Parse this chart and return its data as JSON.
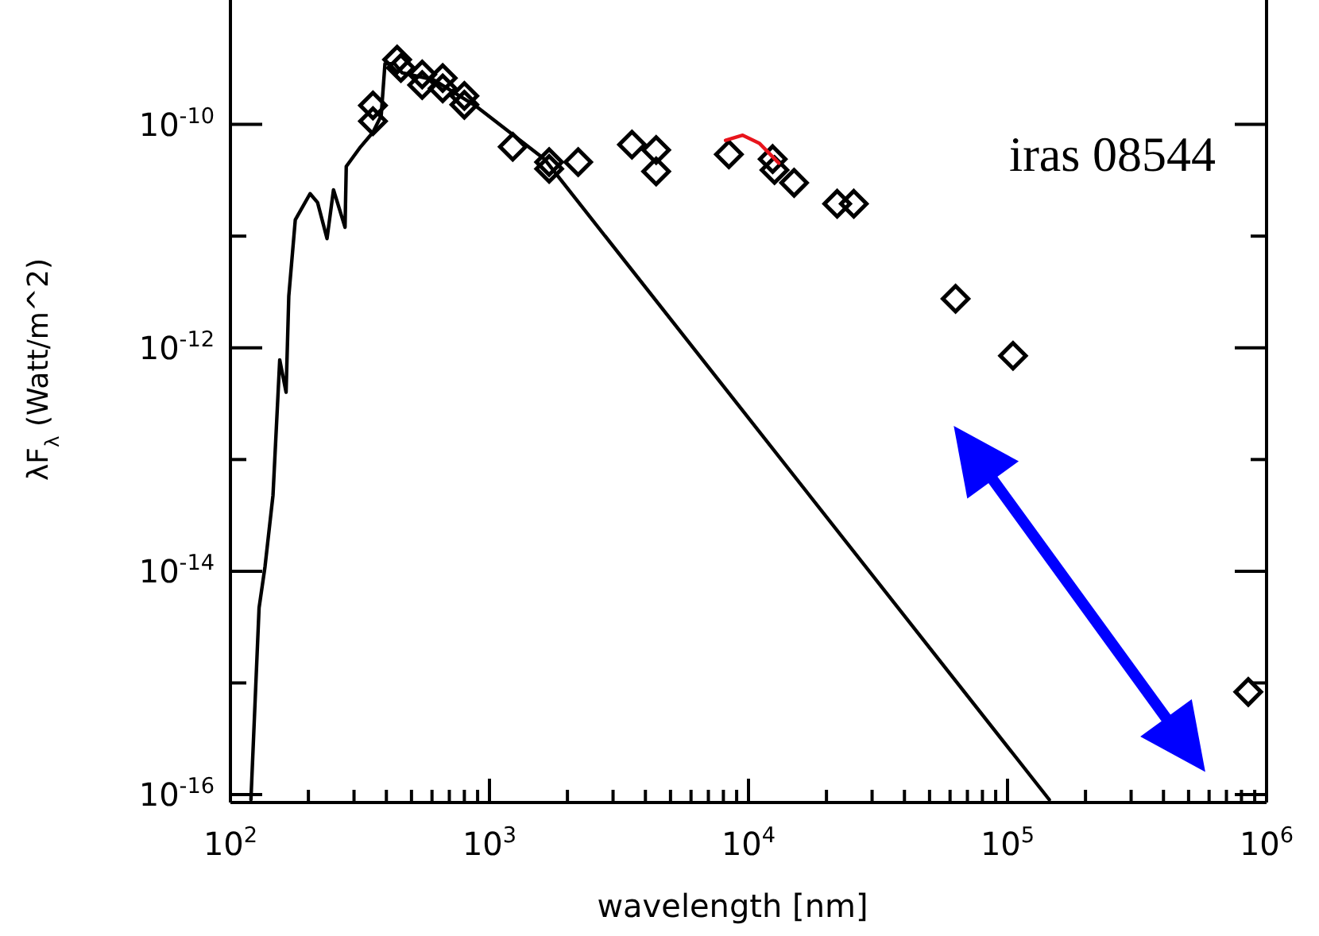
{
  "chart_data": {
    "type": "scatter",
    "xlabel": "wavelength [nm]",
    "ylabel": "λF$_{λ}$  (Watt/m^2)",
    "annotations": [
      "iras 08544"
    ],
    "log": "xy",
    "grid": false,
    "xlim": [
      100,
      1000000
    ],
    "ylim": [
      8.5e-17,
      1.3e-09
    ],
    "xticks": [
      {
        "value": 100,
        "label": "10$^{2}$"
      },
      {
        "value": 200,
        "label": null
      },
      {
        "value": 300,
        "label": null
      },
      {
        "value": 400,
        "label": null
      },
      {
        "value": 500,
        "label": null
      },
      {
        "value": 600,
        "label": null
      },
      {
        "value": 700,
        "label": null
      },
      {
        "value": 800,
        "label": null
      },
      {
        "value": 900,
        "label": null
      },
      {
        "value": 1000,
        "label": "10$^{3}$"
      },
      {
        "value": 2000,
        "label": null
      },
      {
        "value": 3000,
        "label": null
      },
      {
        "value": 4000,
        "label": null
      },
      {
        "value": 5000,
        "label": null
      },
      {
        "value": 6000,
        "label": null
      },
      {
        "value": 7000,
        "label": null
      },
      {
        "value": 8000,
        "label": null
      },
      {
        "value": 9000,
        "label": null
      },
      {
        "value": 10000,
        "label": "10$^{4}$"
      },
      {
        "value": 20000,
        "label": null
      },
      {
        "value": 30000,
        "label": null
      },
      {
        "value": 40000,
        "label": null
      },
      {
        "value": 50000,
        "label": null
      },
      {
        "value": 60000,
        "label": null
      },
      {
        "value": 70000,
        "label": null
      },
      {
        "value": 80000,
        "label": null
      },
      {
        "value": 90000,
        "label": null
      },
      {
        "value": 100000,
        "label": "10$^{5}$"
      },
      {
        "value": 200000,
        "label": null
      },
      {
        "value": 300000,
        "label": null
      },
      {
        "value": 400000,
        "label": null
      },
      {
        "value": 500000,
        "label": null
      },
      {
        "value": 600000,
        "label": null
      },
      {
        "value": 700000,
        "label": null
      },
      {
        "value": 800000,
        "label": null
      },
      {
        "value": 900000,
        "label": null
      },
      {
        "value": 1000000,
        "label": "10$^{6}$"
      }
    ],
    "yticks": [
      {
        "value": 1e-16,
        "label": "10$^{-16}$"
      },
      {
        "value": 1e-15,
        "label": null
      },
      {
        "value": 1e-14,
        "label": "10$^{-14}$"
      },
      {
        "value": 1e-13,
        "label": null
      },
      {
        "value": 1e-12,
        "label": "10$^{-12}$"
      },
      {
        "value": 1e-11,
        "label": null
      },
      {
        "value": 1e-10,
        "label": "10$^{-10}$"
      }
    ],
    "series": [
      {
        "type": "line",
        "color": "#000000",
        "x": [
          120,
          129,
          136,
          146,
          155,
          164,
          168,
          178,
          203,
          217,
          236,
          250,
          277,
          280,
          318,
          355,
          382,
          395,
          430,
          460,
          610,
          890,
          1630,
          145000
        ],
        "values": [
          9e-17,
          4.7e-15,
          1.1e-14,
          4.8e-14,
          7.8e-13,
          4e-13,
          2.9e-12,
          1.4e-11,
          2.4e-11,
          2e-11,
          9.5e-12,
          2.6e-11,
          1.2e-11,
          4.2e-11,
          6.3e-11,
          8.5e-11,
          1.2e-10,
          3.5e-10,
          3.5e-10,
          2.9e-10,
          2.5e-10,
          1.45e-10,
          4.9e-11,
          9e-17
        ]
      },
      {
        "color": "#000000",
        "marker": "diamond",
        "x": [
          355,
          355,
          440,
          455,
          550,
          550,
          660,
          660,
          800,
          800,
          1230,
          1700,
          1700,
          2200,
          3550,
          4400,
          4400,
          8400,
          12400,
          12600,
          15000,
          22000,
          25500,
          63000,
          105000,
          850000
        ],
        "values": [
          1.48e-10,
          1.07e-10,
          3.8e-10,
          3.2e-10,
          2.8e-10,
          2.25e-10,
          2.6e-10,
          2.1e-10,
          1.8e-10,
          1.5e-10,
          6.3e-11,
          4.6e-11,
          4e-11,
          4.6e-11,
          6.6e-11,
          5.9e-11,
          3.8e-11,
          5.4e-11,
          4.9e-11,
          3.9e-11,
          3e-11,
          1.95e-11,
          1.95e-11,
          2.75e-12,
          8.5e-13,
          8.3e-16
        ]
      },
      {
        "type": "line",
        "color": "#e8141c",
        "x": [
          8150,
          9500,
          11000,
          13100
        ],
        "values": [
          7.2e-11,
          8e-11,
          6.8e-11,
          4.5e-11
        ]
      }
    ]
  }
}
